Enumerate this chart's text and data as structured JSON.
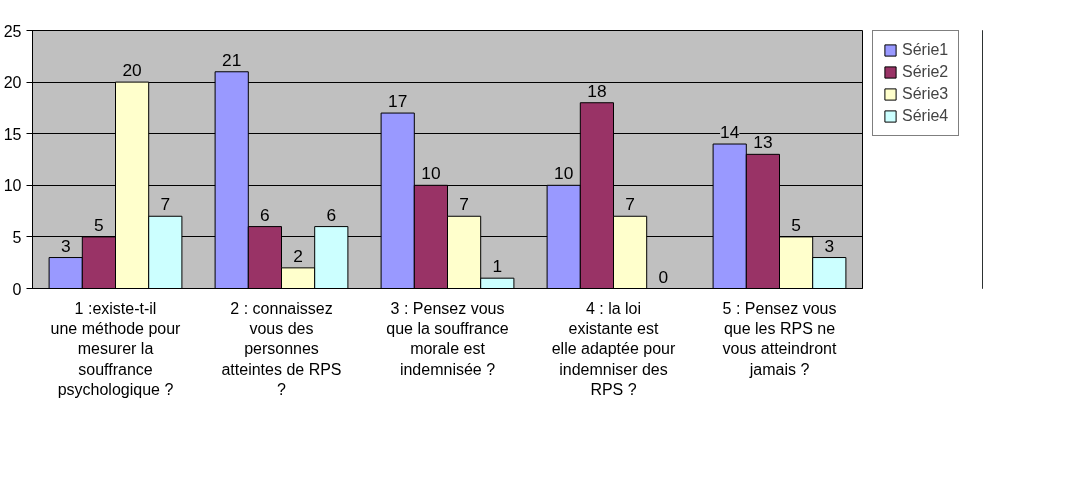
{
  "chart_data": {
    "type": "bar",
    "categories": [
      "1 :existe-t-il une méthode pour mesurer la souffrance psychologique ?",
      "2 : connaissez vous des personnes atteintes de RPS ?",
      "3 : Pensez vous que la souffrance morale est indemnisée ?",
      "4 : la loi existante est elle adaptée pour indemniser des RPS ?",
      "5 : Pensez vous que les RPS ne vous atteindront jamais ?"
    ],
    "series": [
      {
        "name": "Série1",
        "color": "#9999ff",
        "values": [
          3,
          21,
          17,
          10,
          14
        ]
      },
      {
        "name": "Série2",
        "color": "#993366",
        "values": [
          5,
          6,
          10,
          18,
          13
        ]
      },
      {
        "name": "Série3",
        "color": "#ffffcc",
        "values": [
          20,
          2,
          7,
          7,
          5
        ]
      },
      {
        "name": "Série4",
        "color": "#ccffff",
        "values": [
          7,
          6,
          1,
          0,
          3
        ]
      }
    ],
    "ylim": [
      0,
      25
    ],
    "yticks": [
      0,
      5,
      10,
      15,
      20,
      25
    ],
    "grid": "y",
    "legend": "right",
    "data_labels": true
  }
}
